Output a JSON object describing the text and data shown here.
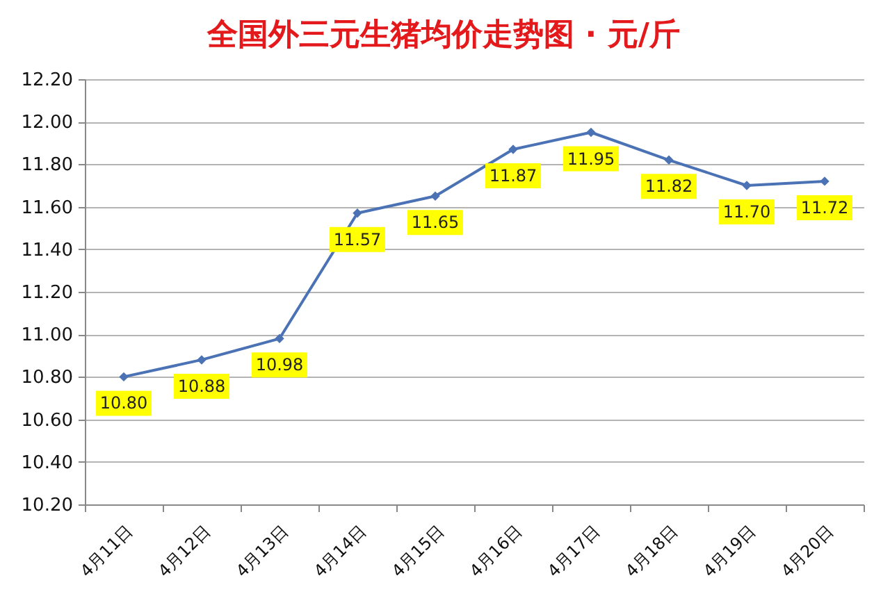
{
  "chart_data": {
    "type": "line",
    "title": "全国外三元生猪均价走势图 · 元/斤",
    "categories": [
      "4月11日",
      "4月12日",
      "4月13日",
      "4月14日",
      "4月15日",
      "4月16日",
      "4月17日",
      "4月18日",
      "4月19日",
      "4月20日"
    ],
    "series": [
      {
        "color": "#4a72b5",
        "values": [
          10.8,
          10.88,
          10.98,
          11.57,
          11.65,
          11.87,
          11.95,
          11.82,
          11.7,
          11.72
        ],
        "value_labels": [
          "10.80",
          "10.88",
          "10.98",
          "11.57",
          "11.65",
          "11.87",
          "11.95",
          "11.82",
          "11.70",
          "11.72"
        ]
      }
    ],
    "ylim": [
      10.2,
      12.2
    ],
    "yticks": [
      {
        "value": 10.2,
        "label": "10.20"
      },
      {
        "value": 10.4,
        "label": "10.40"
      },
      {
        "value": 10.6,
        "label": "10.60"
      },
      {
        "value": 10.8,
        "label": "10.80"
      },
      {
        "value": 11.0,
        "label": "11.00"
      },
      {
        "value": 11.2,
        "label": "11.20"
      },
      {
        "value": 11.4,
        "label": "11.40"
      },
      {
        "value": 11.6,
        "label": "11.60"
      },
      {
        "value": 11.8,
        "label": "11.80"
      },
      {
        "value": 12.0,
        "label": "12.00"
      },
      {
        "value": 12.2,
        "label": "12.20"
      }
    ],
    "grid": "y",
    "marker": "diamond"
  }
}
